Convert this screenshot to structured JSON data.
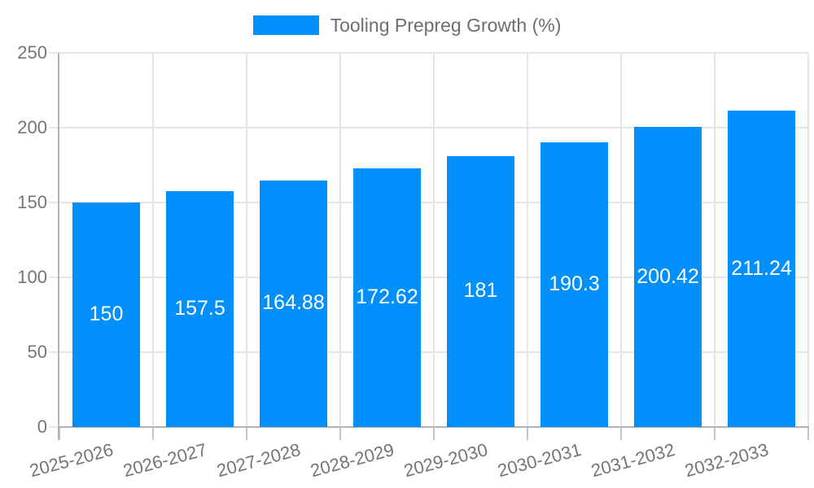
{
  "chart_data": {
    "type": "bar",
    "title": "Tooling Prepreg Growth (%)",
    "categories": [
      "2025-2026",
      "2026-2027",
      "2027-2028",
      "2028-2029",
      "2029-2030",
      "2030-2031",
      "2031-2032",
      "2032-2033"
    ],
    "series": [
      {
        "name": "Tooling Prepreg Growth (%)",
        "values": [
          150,
          157.5,
          164.88,
          172.62,
          181,
          190.3,
          200.42,
          211.24
        ]
      }
    ],
    "xlabel": "",
    "ylabel": "",
    "ylim": [
      0,
      250
    ],
    "yticks": [
      0,
      50,
      100,
      150,
      200,
      250
    ],
    "grid": true,
    "legend_position": "top",
    "colors": {
      "bar": "#008FFB",
      "value_label": "#ffffff",
      "axis_text": "#757575",
      "legend_text": "#6e6e6e",
      "gridline": "#e6e6e6",
      "axis_line": "#b3b3b3",
      "tick": "#c4c4c4",
      "background": "#ffffff"
    }
  }
}
